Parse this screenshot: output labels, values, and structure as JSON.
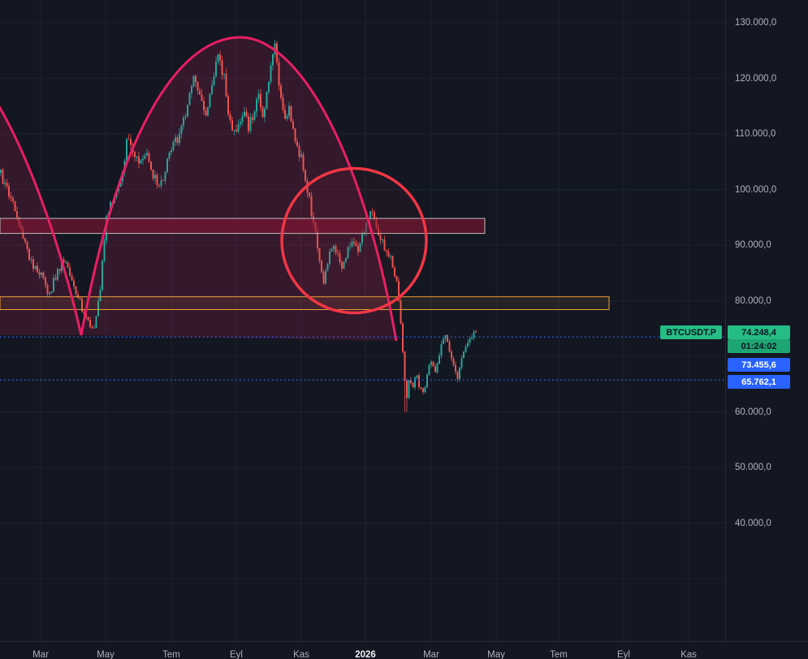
{
  "symbol": "BTCUSDT.P",
  "price_tags": {
    "last": "74.248,4",
    "countdown": "01:24:02",
    "alert_upper": "73.455,6",
    "alert_lower": "65.762,1"
  },
  "colors": {
    "background": "#131722",
    "grid": "#1d2230",
    "up_candle": "#26a69a",
    "down_candle": "#ef5350",
    "curve": "#e91e63",
    "curve_fill": "rgba(233,30,99,0.16)",
    "circle": "#f23645",
    "circle_fill": "rgba(242,54,69,0.05)",
    "zone_upper_border": "#b9c2b6",
    "zone_upper_fill": "rgba(140,20,52,0.55)",
    "zone_lower_border": "#f2a33c",
    "zone_lower_fill": "rgba(242,163,60,0.08)",
    "alert_line": "#2e66f6",
    "last_tag_bg": "#26bd85",
    "countdown_tag_bg": "#1ea574",
    "alert_tag_bg": "#2962ff",
    "axis_text": "#aeb2bd"
  },
  "price_axis": {
    "labels": [
      {
        "text": "130.000,0",
        "value": 130000
      },
      {
        "text": "120.000,0",
        "value": 120000
      },
      {
        "text": "110.000,0",
        "value": 110000
      },
      {
        "text": "100.000,0",
        "value": 100000
      },
      {
        "text": "90.000,0",
        "value": 90000
      },
      {
        "text": "80.000,0",
        "value": 80000
      },
      {
        "text": "60.000,0",
        "value": 60000
      },
      {
        "text": "50.000,0",
        "value": 50000
      },
      {
        "text": "40.000,0",
        "value": 40000
      }
    ]
  },
  "time_axis": {
    "labels": [
      {
        "text": "Mar"
      },
      {
        "text": "May"
      },
      {
        "text": "Tem"
      },
      {
        "text": "Eyl"
      },
      {
        "text": "Kas"
      },
      {
        "text": "2026",
        "major": true
      },
      {
        "text": "Mar"
      },
      {
        "text": "May"
      },
      {
        "text": "Tem"
      },
      {
        "text": "Eyl"
      },
      {
        "text": "Kas"
      }
    ]
  },
  "chart_data": {
    "type": "candlestick",
    "symbol": "BTCUSDT.P",
    "title": "",
    "last_price": 74248.4,
    "countdown": "01:24:02",
    "alert_prices": [
      73455.6,
      65762.1
    ],
    "y_axis": {
      "visible_min": 40000,
      "visible_max": 130000,
      "tick_step": 10000,
      "format": "tr-decimal"
    },
    "x_axis_months": [
      "Mar",
      "May",
      "Tem",
      "Eyl",
      "Kas",
      "2026",
      "Mar",
      "May",
      "Tem",
      "Eyl",
      "Kas"
    ],
    "price_path": [
      [
        0,
        103000
      ],
      [
        12,
        99000
      ],
      [
        25,
        93000
      ],
      [
        38,
        87000
      ],
      [
        50,
        85000
      ],
      [
        60,
        81000
      ],
      [
        70,
        85000
      ],
      [
        80,
        88000
      ],
      [
        90,
        83000
      ],
      [
        100,
        79000
      ],
      [
        108,
        76000
      ],
      [
        115,
        74500
      ],
      [
        122,
        80000
      ],
      [
        130,
        94000
      ],
      [
        140,
        99000
      ],
      [
        150,
        103000
      ],
      [
        158,
        110000
      ],
      [
        165,
        106000
      ],
      [
        172,
        104000
      ],
      [
        180,
        106000
      ],
      [
        188,
        103000
      ],
      [
        196,
        100000
      ],
      [
        204,
        104000
      ],
      [
        211,
        107000
      ],
      [
        218,
        109000
      ],
      [
        226,
        112000
      ],
      [
        233,
        117000
      ],
      [
        240,
        120000
      ],
      [
        247,
        116000
      ],
      [
        254,
        114000
      ],
      [
        261,
        118000
      ],
      [
        268,
        124000
      ],
      [
        275,
        121000
      ],
      [
        282,
        113000
      ],
      [
        288,
        110000
      ],
      [
        294,
        112000
      ],
      [
        300,
        114000
      ],
      [
        306,
        111000
      ],
      [
        312,
        114000
      ],
      [
        318,
        117000
      ],
      [
        324,
        112000
      ],
      [
        330,
        119000
      ],
      [
        338,
        126000
      ],
      [
        344,
        118000
      ],
      [
        350,
        112000
      ],
      [
        356,
        115000
      ],
      [
        362,
        110000
      ],
      [
        368,
        107000
      ],
      [
        374,
        104000
      ],
      [
        380,
        99000
      ],
      [
        386,
        94000
      ],
      [
        392,
        89000
      ],
      [
        398,
        83000
      ],
      [
        404,
        87000
      ],
      [
        410,
        91000
      ],
      [
        416,
        88000
      ],
      [
        422,
        86000
      ],
      [
        428,
        89000
      ],
      [
        434,
        91000
      ],
      [
        440,
        89000
      ],
      [
        446,
        92000
      ],
      [
        452,
        94000
      ],
      [
        458,
        97000
      ],
      [
        464,
        93000
      ],
      [
        470,
        91000
      ],
      [
        476,
        89000
      ],
      [
        482,
        87000
      ],
      [
        488,
        84000
      ],
      [
        492,
        79000
      ],
      [
        496,
        71000
      ],
      [
        500,
        62000
      ],
      [
        504,
        66000
      ],
      [
        508,
        64000
      ],
      [
        512,
        67000
      ],
      [
        516,
        65000
      ],
      [
        520,
        63000
      ],
      [
        524,
        65000
      ],
      [
        528,
        68000
      ],
      [
        532,
        69000
      ],
      [
        536,
        67000
      ],
      [
        540,
        70000
      ],
      [
        544,
        72000
      ],
      [
        548,
        74000
      ],
      [
        552,
        72000
      ],
      [
        556,
        70000
      ],
      [
        560,
        68000
      ],
      [
        564,
        66000
      ],
      [
        568,
        69000
      ],
      [
        572,
        71000
      ],
      [
        576,
        72000
      ],
      [
        580,
        73000
      ],
      [
        585,
        74248
      ]
    ],
    "zones": [
      {
        "name": "supply-zone",
        "price_top": 94800,
        "price_bottom": 92100
      },
      {
        "name": "support-zone",
        "price_top": 80700,
        "price_bottom": 78400
      }
    ],
    "annotations": {
      "cycle_high": 126400,
      "crash_low": 60000,
      "circle_center_price": 90800
    }
  }
}
